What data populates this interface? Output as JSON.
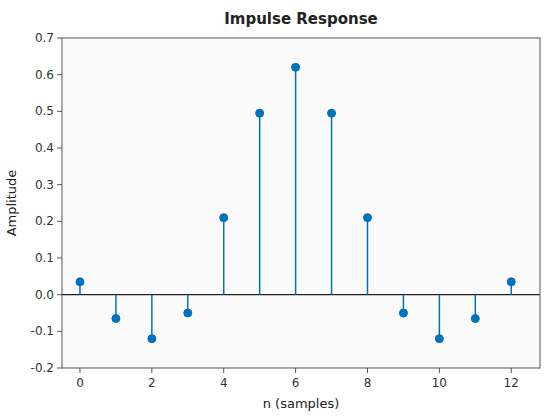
{
  "chart_data": {
    "type": "stem",
    "title": "Impulse Response",
    "xlabel": "n (samples)",
    "ylabel": "Amplitude",
    "x": [
      0,
      1,
      2,
      3,
      4,
      5,
      6,
      7,
      8,
      9,
      10,
      11,
      12
    ],
    "values": [
      0.035,
      -0.065,
      -0.12,
      -0.05,
      0.21,
      0.495,
      0.62,
      0.495,
      0.21,
      -0.05,
      -0.12,
      -0.065,
      0.035
    ],
    "color": "#0072BD",
    "xlim": [
      -0.5,
      12.8
    ],
    "ylim": [
      -0.2,
      0.7
    ],
    "xticks": [
      0,
      2,
      4,
      6,
      8,
      10,
      12
    ],
    "yticks": [
      -0.2,
      -0.1,
      {
        "value": 0.0,
        "label": "0.0"
      },
      0.1,
      0.2,
      0.3,
      0.4,
      0.5,
      0.6,
      0.7
    ],
    "grid": false
  }
}
